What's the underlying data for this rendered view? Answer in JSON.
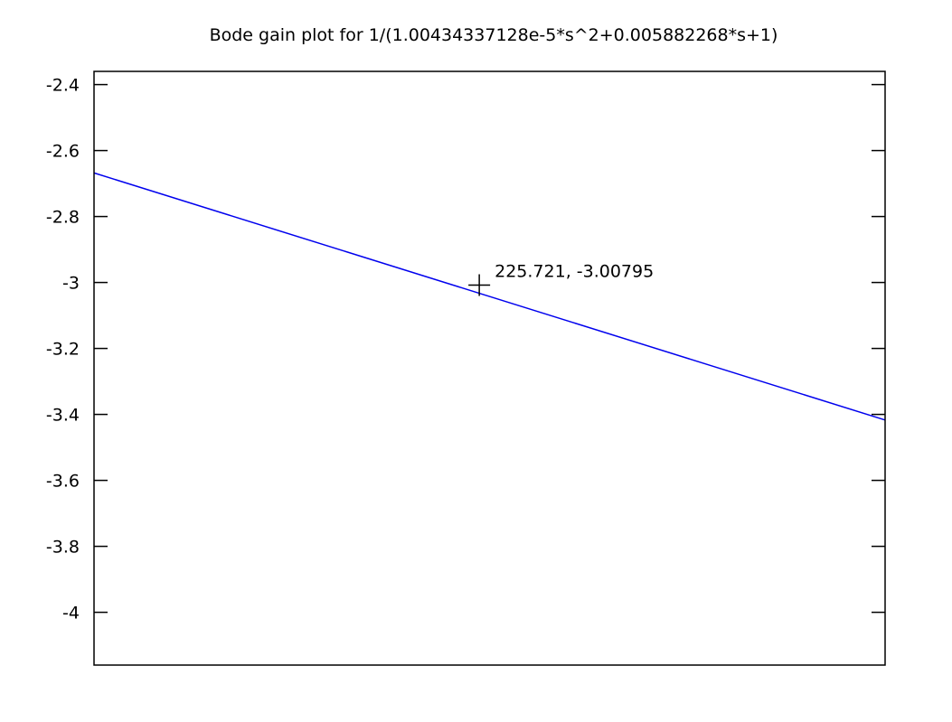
{
  "chart_data": {
    "type": "line",
    "title": "Bode gain plot for 1/(1.00434337128e-5*s^2+0.005882268*s+1)",
    "xlabel": "",
    "ylabel": "",
    "y_ticks": [
      -2.4,
      -2.6,
      -2.8,
      -3,
      -3.2,
      -3.4,
      -3.6,
      -3.8,
      -4
    ],
    "y_tick_labels": [
      "-2.4",
      "-2.6",
      "-2.8",
      "-3",
      "-3.2",
      "-3.4",
      "-3.6",
      "-3.8",
      "-4"
    ],
    "ylim": [
      -4.16,
      -2.36
    ],
    "x_tick_labels_visible": false,
    "grid": false,
    "series": [
      {
        "color": "#0000ee",
        "y_start": -2.668,
        "y_end": -3.417
      }
    ],
    "cursor": {
      "label": "225.721, -3.00795",
      "y": -3.00795,
      "x_fraction": 0.487
    }
  }
}
